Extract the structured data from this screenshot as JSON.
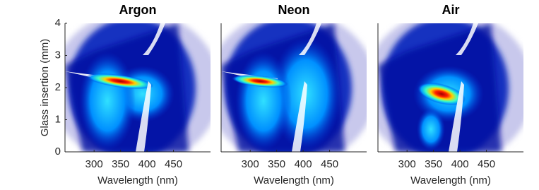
{
  "chart_data": [
    {
      "type": "contour",
      "title": "Argon",
      "xlabel": "Wavelength (nm)",
      "ylabel": "Glass insertion (mm)",
      "xlim": [
        245,
        520
      ],
      "xticks": [
        300,
        350,
        400,
        450
      ],
      "ylim": [
        0,
        4
      ],
      "yticks": [
        0,
        1,
        2,
        3,
        4
      ]
    },
    {
      "type": "contour",
      "title": "Neon",
      "xlabel": "Wavelength (nm)",
      "xlim": [
        245,
        520
      ],
      "xticks": [
        300,
        350,
        400,
        450
      ],
      "ylim": [
        0,
        4
      ]
    },
    {
      "type": "contour",
      "title": "Air",
      "xlabel": "Wavelength (nm)",
      "xlim": [
        245,
        520
      ],
      "xticks": [
        300,
        350,
        400,
        450
      ],
      "ylim": [
        0,
        4
      ]
    }
  ]
}
